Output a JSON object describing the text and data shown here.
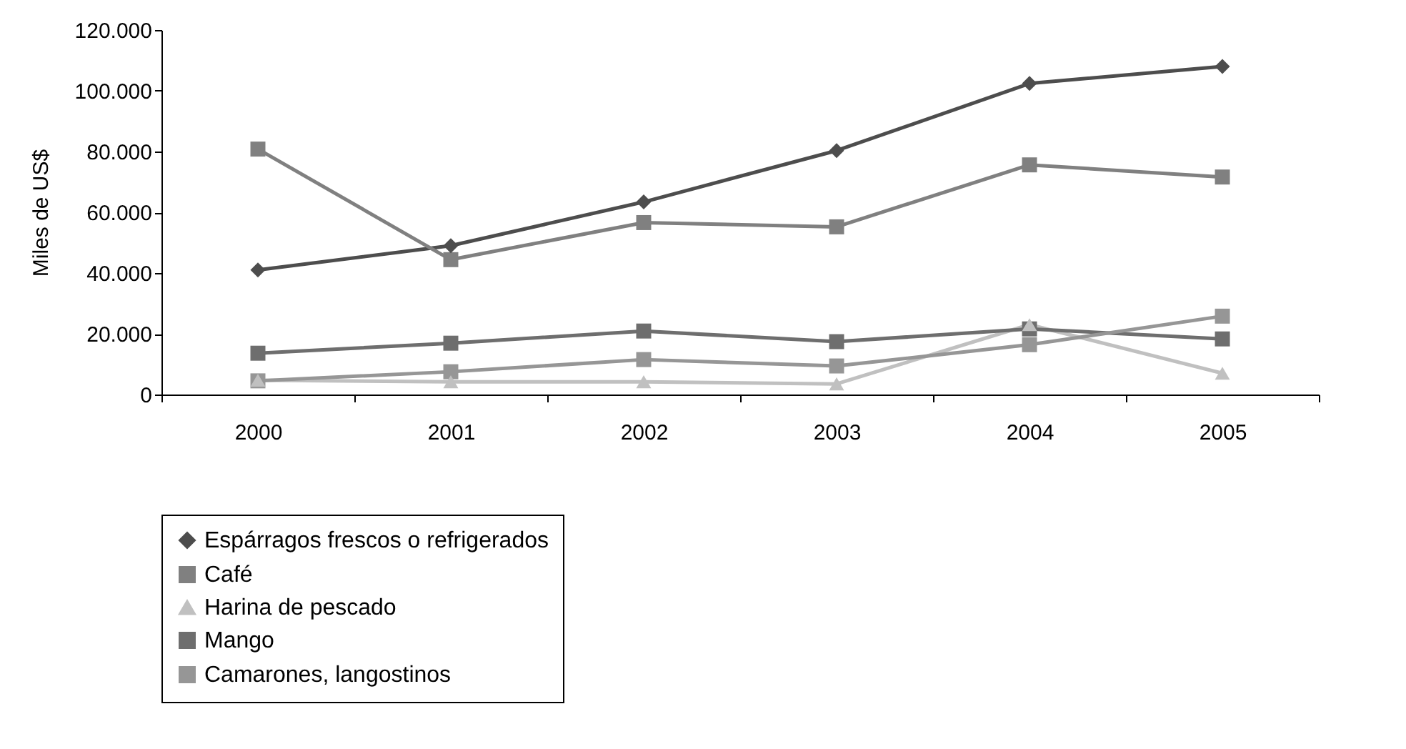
{
  "chart_data": {
    "type": "line",
    "ylabel": "Miles de US$",
    "categories": [
      "2000",
      "2001",
      "2002",
      "2003",
      "2004",
      "2005"
    ],
    "series": [
      {
        "name": "Espárragos frescos o refrigerados",
        "color": "#4d4d4d",
        "marker": "diamond",
        "values": [
          41000,
          49000,
          63400,
          80300,
          102400,
          108000
        ]
      },
      {
        "name": "Café",
        "color": "#808080",
        "marker": "square",
        "values": [
          80800,
          44400,
          56600,
          55200,
          75600,
          71600
        ]
      },
      {
        "name": "Harina de pescado",
        "color": "#c0c0c0",
        "marker": "triangle",
        "values": [
          4700,
          4200,
          4200,
          3500,
          23000,
          7000
        ]
      },
      {
        "name": "Mango",
        "color": "#6e6e6e",
        "marker": "square",
        "values": [
          13600,
          16900,
          20900,
          17400,
          21600,
          18300
        ]
      },
      {
        "name": "Camarones, langostinos",
        "color": "#969696",
        "marker": "square",
        "values": [
          4500,
          7500,
          11500,
          9400,
          16400,
          25800
        ]
      }
    ],
    "ylim": [
      0,
      120000
    ],
    "yticks": [
      {
        "value": 0,
        "label": "0"
      },
      {
        "value": 20000,
        "label": "20.000"
      },
      {
        "value": 40000,
        "label": "40.000"
      },
      {
        "value": 60000,
        "label": "60.000"
      },
      {
        "value": 80000,
        "label": "80.000"
      },
      {
        "value": 100000,
        "label": "100.000"
      },
      {
        "value": 120000,
        "label": "120.000"
      }
    ],
    "grid": false,
    "legend": "bottom",
    "line_style": "solid"
  }
}
